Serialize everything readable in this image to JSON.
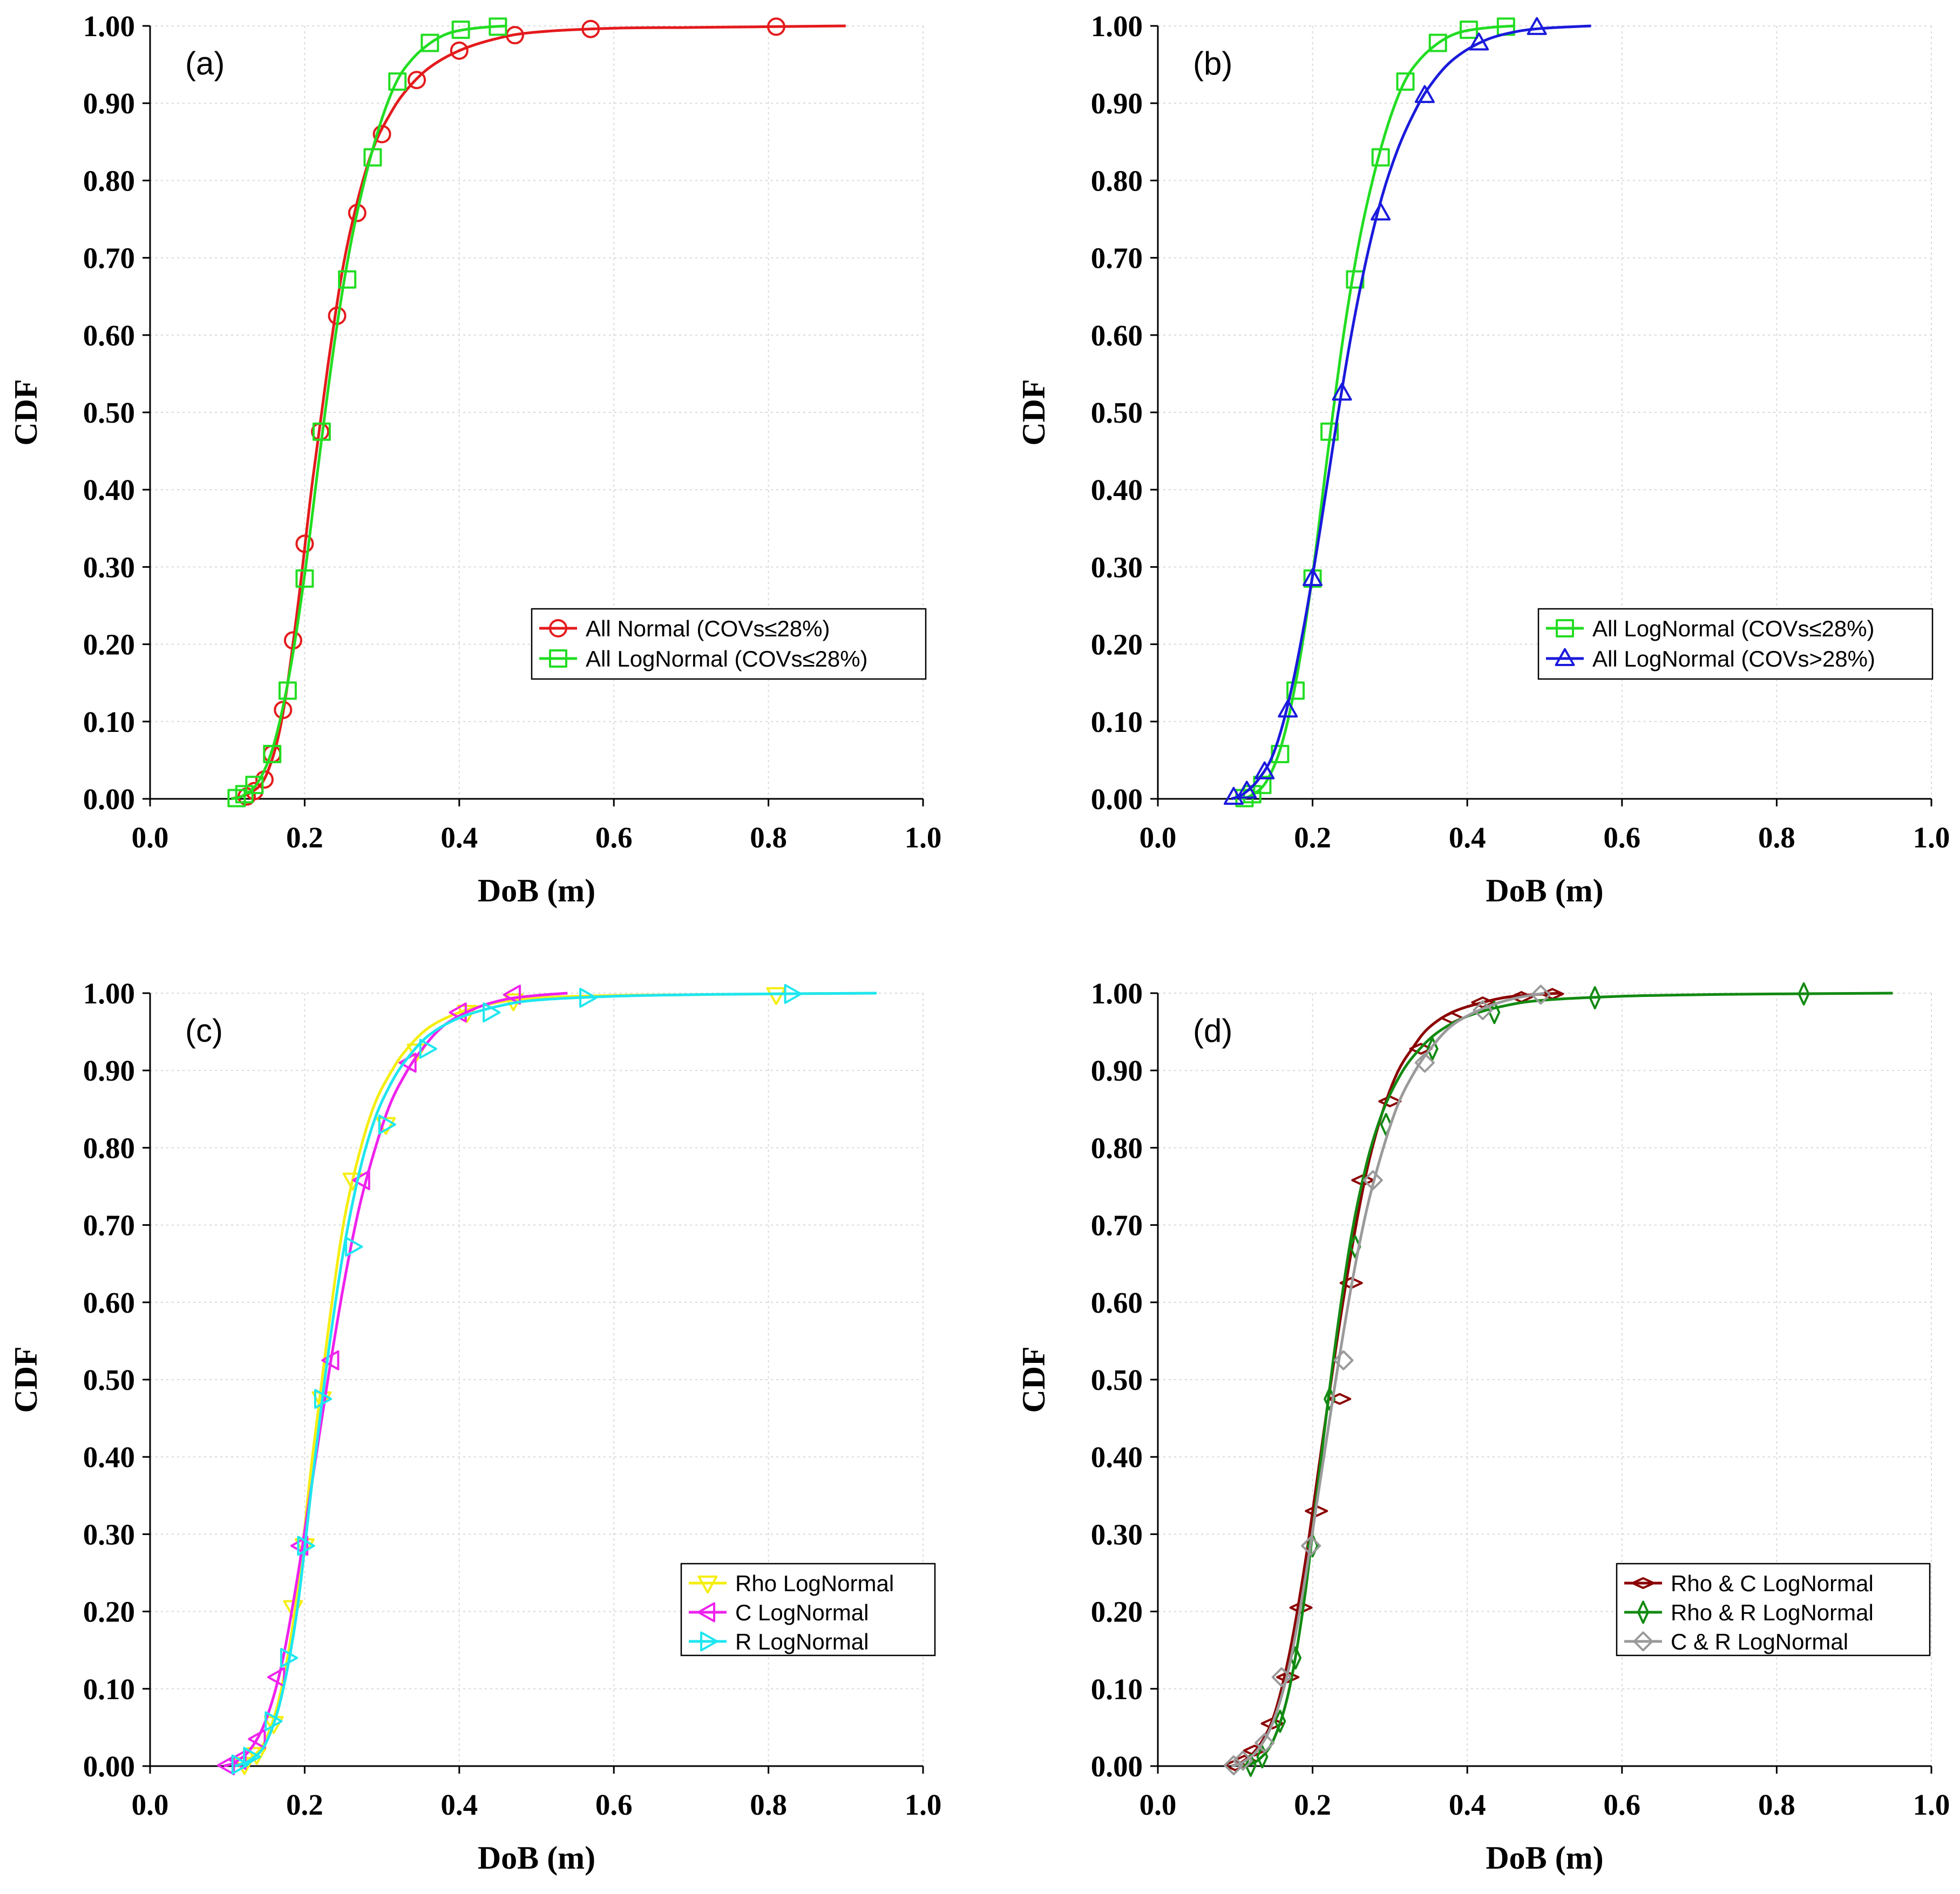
{
  "chart_data": [
    {
      "type": "line",
      "panel_label": "(a)",
      "xlabel": "DoB (m)",
      "ylabel": "CDF",
      "xlim": [
        0.0,
        1.0
      ],
      "ylim": [
        0.0,
        1.0
      ],
      "xticks": [
        "0.0",
        "0.2",
        "0.4",
        "0.6",
        "0.8",
        "1.0"
      ],
      "yticks": [
        "0.00",
        "0.10",
        "0.20",
        "0.30",
        "0.40",
        "0.50",
        "0.60",
        "0.70",
        "0.80",
        "0.90",
        "1.00"
      ],
      "grid": true,
      "legend_position": "lower-right",
      "series": [
        {
          "name": "All Normal (COVs≤28%)",
          "color": "#e41a1c",
          "marker": "circle",
          "x": [
            0.125,
            0.135,
            0.148,
            0.158,
            0.172,
            0.185,
            0.2,
            0.22,
            0.242,
            0.268,
            0.3,
            0.345,
            0.4,
            0.472,
            0.57,
            0.81
          ],
          "y": [
            0.003,
            0.01,
            0.025,
            0.058,
            0.115,
            0.205,
            0.33,
            0.475,
            0.625,
            0.758,
            0.86,
            0.93,
            0.968,
            0.988,
            0.996,
            0.999
          ],
          "curve_x": [
            0.105,
            0.13,
            0.15,
            0.17,
            0.19,
            0.21,
            0.23,
            0.25,
            0.27,
            0.29,
            0.31,
            0.33,
            0.36,
            0.4,
            0.45,
            0.5,
            0.6,
            0.7,
            0.8,
            0.9
          ],
          "curve_y": [
            0.0,
            0.008,
            0.03,
            0.1,
            0.24,
            0.41,
            0.56,
            0.69,
            0.78,
            0.845,
            0.885,
            0.915,
            0.945,
            0.968,
            0.984,
            0.992,
            0.997,
            0.998,
            0.999,
            1.0
          ]
        },
        {
          "name": "All LogNormal (COVs≤28%)",
          "color": "#22dd22",
          "marker": "square",
          "x": [
            0.112,
            0.122,
            0.135,
            0.158,
            0.178,
            0.2,
            0.222,
            0.255,
            0.288,
            0.32,
            0.362,
            0.402,
            0.45
          ],
          "y": [
            0.001,
            0.006,
            0.018,
            0.058,
            0.14,
            0.285,
            0.475,
            0.672,
            0.83,
            0.928,
            0.978,
            0.995,
            0.999
          ],
          "curve_x": [
            0.105,
            0.12,
            0.14,
            0.16,
            0.18,
            0.2,
            0.22,
            0.24,
            0.26,
            0.28,
            0.3,
            0.32,
            0.34,
            0.36,
            0.38,
            0.4,
            0.43,
            0.46
          ],
          "curve_y": [
            0.0,
            0.004,
            0.022,
            0.07,
            0.16,
            0.29,
            0.45,
            0.6,
            0.72,
            0.81,
            0.88,
            0.93,
            0.958,
            0.976,
            0.988,
            0.994,
            0.998,
            1.0
          ]
        }
      ]
    },
    {
      "type": "line",
      "panel_label": "(b)",
      "xlabel": "DoB (m)",
      "ylabel": "CDF",
      "xlim": [
        0.0,
        1.0
      ],
      "ylim": [
        0.0,
        1.0
      ],
      "xticks": [
        "0.0",
        "0.2",
        "0.4",
        "0.6",
        "0.8",
        "1.0"
      ],
      "yticks": [
        "0.00",
        "0.10",
        "0.20",
        "0.30",
        "0.40",
        "0.50",
        "0.60",
        "0.70",
        "0.80",
        "0.90",
        "1.00"
      ],
      "grid": true,
      "legend_position": "lower-right",
      "series": [
        {
          "name": "All LogNormal (COVs≤28%)",
          "color": "#22dd22",
          "marker": "square",
          "x": [
            0.112,
            0.122,
            0.135,
            0.158,
            0.178,
            0.2,
            0.222,
            0.255,
            0.288,
            0.32,
            0.362,
            0.402,
            0.45
          ],
          "y": [
            0.001,
            0.006,
            0.018,
            0.058,
            0.14,
            0.285,
            0.475,
            0.672,
            0.83,
            0.928,
            0.978,
            0.995,
            0.999
          ],
          "curve_x": [
            0.105,
            0.12,
            0.14,
            0.16,
            0.18,
            0.2,
            0.22,
            0.24,
            0.26,
            0.28,
            0.3,
            0.32,
            0.34,
            0.36,
            0.38,
            0.4,
            0.43,
            0.46
          ],
          "curve_y": [
            0.0,
            0.004,
            0.022,
            0.07,
            0.16,
            0.29,
            0.45,
            0.6,
            0.72,
            0.81,
            0.88,
            0.93,
            0.958,
            0.976,
            0.988,
            0.994,
            0.998,
            1.0
          ]
        },
        {
          "name": "All LogNormal (COVs>28%)",
          "color": "#1a1adc",
          "marker": "triangle-up",
          "x": [
            0.098,
            0.115,
            0.138,
            0.168,
            0.2,
            0.238,
            0.288,
            0.345,
            0.415,
            0.49
          ],
          "y": [
            0.002,
            0.01,
            0.035,
            0.115,
            0.285,
            0.525,
            0.758,
            0.91,
            0.978,
            0.998
          ],
          "curve_x": [
            0.095,
            0.11,
            0.13,
            0.15,
            0.17,
            0.19,
            0.21,
            0.23,
            0.25,
            0.27,
            0.29,
            0.31,
            0.33,
            0.35,
            0.38,
            0.42,
            0.46,
            0.5,
            0.56
          ],
          "curve_y": [
            0.0,
            0.006,
            0.025,
            0.06,
            0.13,
            0.23,
            0.35,
            0.48,
            0.6,
            0.7,
            0.78,
            0.84,
            0.885,
            0.92,
            0.955,
            0.98,
            0.992,
            0.997,
            1.0
          ]
        }
      ]
    },
    {
      "type": "line",
      "panel_label": "(c)",
      "xlabel": "DoB (m)",
      "ylabel": "CDF",
      "xlim": [
        0.0,
        1.0
      ],
      "ylim": [
        0.0,
        1.0
      ],
      "xticks": [
        "0.0",
        "0.2",
        "0.4",
        "0.6",
        "0.8",
        "1.0"
      ],
      "yticks": [
        "0.00",
        "0.10",
        "0.20",
        "0.30",
        "0.40",
        "0.50",
        "0.60",
        "0.70",
        "0.80",
        "0.90",
        "1.00"
      ],
      "grid": true,
      "legend_position": "lower-right",
      "series": [
        {
          "name": "Rho LogNormal",
          "color": "#f5ee10",
          "marker": "triangle-down",
          "x": [
            0.122,
            0.138,
            0.16,
            0.185,
            0.2,
            0.222,
            0.262,
            0.305,
            0.345,
            0.41,
            0.47,
            0.81
          ],
          "y": [
            0.002,
            0.015,
            0.055,
            0.205,
            0.285,
            0.475,
            0.758,
            0.83,
            0.925,
            0.975,
            0.99,
            0.998
          ],
          "curve_x": [
            0.11,
            0.13,
            0.15,
            0.17,
            0.19,
            0.21,
            0.23,
            0.25,
            0.27,
            0.29,
            0.31,
            0.33,
            0.36,
            0.4,
            0.45,
            0.5,
            0.6,
            0.7,
            0.8,
            0.94
          ],
          "curve_y": [
            0.0,
            0.01,
            0.035,
            0.1,
            0.22,
            0.4,
            0.56,
            0.7,
            0.79,
            0.855,
            0.895,
            0.925,
            0.955,
            0.975,
            0.988,
            0.994,
            0.997,
            0.998,
            0.999,
            1.0
          ]
        },
        {
          "name": "C LogNormal",
          "color": "#ee22ee",
          "marker": "triangle-left",
          "x": [
            0.1,
            0.115,
            0.14,
            0.165,
            0.195,
            0.235,
            0.275,
            0.335,
            0.4,
            0.47
          ],
          "y": [
            0.001,
            0.008,
            0.035,
            0.115,
            0.285,
            0.525,
            0.758,
            0.91,
            0.975,
            0.998
          ],
          "curve_x": [
            0.095,
            0.11,
            0.13,
            0.15,
            0.17,
            0.19,
            0.21,
            0.23,
            0.25,
            0.27,
            0.29,
            0.31,
            0.33,
            0.35,
            0.38,
            0.42,
            0.46,
            0.5,
            0.54
          ],
          "curve_y": [
            0.0,
            0.005,
            0.022,
            0.06,
            0.13,
            0.24,
            0.37,
            0.5,
            0.62,
            0.72,
            0.795,
            0.855,
            0.895,
            0.925,
            0.958,
            0.98,
            0.992,
            0.997,
            1.0
          ]
        },
        {
          "name": "R LogNormal",
          "color": "#1ee6f0",
          "marker": "triangle-right",
          "x": [
            0.115,
            0.13,
            0.158,
            0.178,
            0.2,
            0.222,
            0.262,
            0.305,
            0.358,
            0.44,
            0.565,
            0.83
          ],
          "y": [
            0.002,
            0.012,
            0.058,
            0.14,
            0.285,
            0.475,
            0.672,
            0.83,
            0.928,
            0.975,
            0.994,
            0.999
          ],
          "curve_x": [
            0.11,
            0.13,
            0.15,
            0.17,
            0.19,
            0.21,
            0.23,
            0.25,
            0.27,
            0.29,
            0.31,
            0.33,
            0.36,
            0.4,
            0.45,
            0.5,
            0.6,
            0.7,
            0.8,
            0.94
          ],
          "curve_y": [
            0.0,
            0.008,
            0.03,
            0.09,
            0.2,
            0.37,
            0.53,
            0.665,
            0.765,
            0.835,
            0.88,
            0.912,
            0.945,
            0.968,
            0.983,
            0.991,
            0.996,
            0.998,
            0.999,
            1.0
          ]
        }
      ]
    },
    {
      "type": "line",
      "panel_label": "(d)",
      "xlabel": "DoB (m)",
      "ylabel": "CDF",
      "xlim": [
        0.0,
        1.0
      ],
      "ylim": [
        0.0,
        1.0
      ],
      "xticks": [
        "0.0",
        "0.2",
        "0.4",
        "0.6",
        "0.8",
        "1.0"
      ],
      "yticks": [
        "0.00",
        "0.10",
        "0.20",
        "0.30",
        "0.40",
        "0.50",
        "0.60",
        "0.70",
        "0.80",
        "0.90",
        "1.00"
      ],
      "grid": true,
      "legend_position": "lower-right",
      "series": [
        {
          "name": "Rho & C LogNormal",
          "color": "#8b0000",
          "marker": "diamond-wide",
          "x": [
            0.1,
            0.112,
            0.125,
            0.148,
            0.168,
            0.185,
            0.205,
            0.235,
            0.25,
            0.265,
            0.3,
            0.34,
            0.38,
            0.42,
            0.47,
            0.51
          ],
          "y": [
            0.001,
            0.007,
            0.02,
            0.055,
            0.115,
            0.205,
            0.33,
            0.475,
            0.625,
            0.758,
            0.86,
            0.928,
            0.968,
            0.988,
            0.995,
            0.999
          ],
          "curve_x": [
            0.095,
            0.11,
            0.13,
            0.15,
            0.17,
            0.19,
            0.21,
            0.23,
            0.25,
            0.27,
            0.29,
            0.31,
            0.33,
            0.35,
            0.38,
            0.42,
            0.46,
            0.52
          ],
          "curve_y": [
            0.0,
            0.006,
            0.025,
            0.065,
            0.145,
            0.26,
            0.4,
            0.54,
            0.665,
            0.77,
            0.845,
            0.898,
            0.93,
            0.955,
            0.975,
            0.988,
            0.996,
            1.0
          ]
        },
        {
          "name": "Rho & R LogNormal",
          "color": "#128a12",
          "marker": "diamond-tall",
          "x": [
            0.12,
            0.135,
            0.158,
            0.178,
            0.2,
            0.222,
            0.255,
            0.295,
            0.355,
            0.435,
            0.565,
            0.835
          ],
          "y": [
            0.001,
            0.012,
            0.058,
            0.14,
            0.285,
            0.475,
            0.672,
            0.83,
            0.928,
            0.975,
            0.994,
            0.999
          ],
          "curve_x": [
            0.11,
            0.13,
            0.15,
            0.17,
            0.19,
            0.21,
            0.23,
            0.25,
            0.27,
            0.29,
            0.31,
            0.33,
            0.36,
            0.4,
            0.45,
            0.5,
            0.6,
            0.7,
            0.8,
            0.95
          ],
          "curve_y": [
            0.0,
            0.008,
            0.035,
            0.1,
            0.22,
            0.39,
            0.55,
            0.685,
            0.78,
            0.845,
            0.888,
            0.918,
            0.948,
            0.97,
            0.984,
            0.991,
            0.996,
            0.998,
            0.999,
            1.0
          ]
        },
        {
          "name": "C & R LogNormal",
          "color": "#9a9a9a",
          "marker": "diamond",
          "x": [
            0.098,
            0.11,
            0.138,
            0.16,
            0.198,
            0.24,
            0.278,
            0.345,
            0.42,
            0.495
          ],
          "y": [
            0.001,
            0.007,
            0.03,
            0.115,
            0.285,
            0.525,
            0.758,
            0.91,
            0.978,
            0.998
          ],
          "curve_x": [
            0.095,
            0.11,
            0.13,
            0.15,
            0.17,
            0.19,
            0.21,
            0.23,
            0.25,
            0.27,
            0.29,
            0.31,
            0.33,
            0.35,
            0.38,
            0.42,
            0.46,
            0.5
          ],
          "curve_y": [
            0.0,
            0.005,
            0.022,
            0.06,
            0.13,
            0.24,
            0.37,
            0.5,
            0.62,
            0.72,
            0.795,
            0.855,
            0.895,
            0.925,
            0.958,
            0.98,
            0.993,
            1.0
          ]
        }
      ]
    }
  ]
}
